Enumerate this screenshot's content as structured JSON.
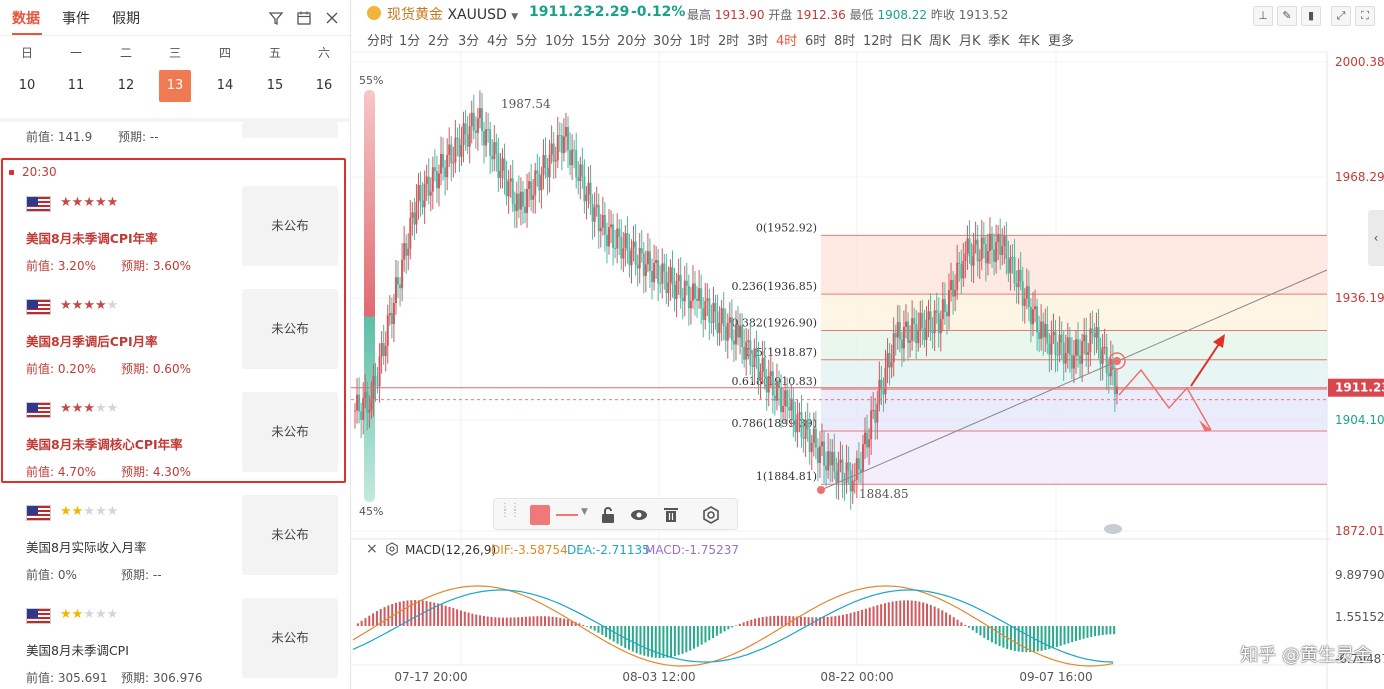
{
  "left_panel": {
    "tabs": [
      {
        "label": "数据",
        "active": true
      },
      {
        "label": "事件",
        "active": false
      },
      {
        "label": "假期",
        "active": false
      }
    ],
    "icons": [
      "filter-icon",
      "calendar-icon",
      "close-icon"
    ],
    "weekdays": [
      "日",
      "一",
      "二",
      "三",
      "四",
      "五",
      "六"
    ],
    "dates": [
      "10",
      "11",
      "12",
      "13",
      "14",
      "15",
      "16"
    ],
    "selected_date": "13",
    "partial_row": {
      "prev": "前值: 141.9",
      "forecast": "预期: --"
    },
    "time_label": "20:30",
    "events": [
      {
        "stars": 5,
        "title": "美国8月未季调CPI年率",
        "prev": "前值: 3.20%",
        "forecast": "预期: 3.60%",
        "status": "未公布",
        "highlight": true
      },
      {
        "stars": 4,
        "title": "美国8月季调后CPI月率",
        "prev": "前值: 0.20%",
        "forecast": "预期: 0.60%",
        "status": "未公布",
        "highlight": true
      },
      {
        "stars": 3,
        "title": "美国8月未季调核心CPI年率",
        "prev": "前值: 4.70%",
        "forecast": "预期: 4.30%",
        "status": "未公布",
        "highlight": true
      },
      {
        "stars": 2,
        "title": "美国8月实际收入月率",
        "prev": "前值: 0%",
        "forecast": "预期: --",
        "status": "未公布",
        "highlight": false
      },
      {
        "stars": 2,
        "title": "美国8月未季调CPI",
        "prev": "前值: 305.691",
        "forecast": "预期: 306.976",
        "status": "未公布",
        "highlight": false
      }
    ]
  },
  "chart": {
    "symbol_cn": "现货黄金",
    "symbol": "XAUUSD",
    "price": "1911.23",
    "change": "-2.29",
    "change_pct": "-0.12%",
    "high_label": "最高",
    "high": "1913.90",
    "open_label": "开盘",
    "open": "1912.36",
    "low_label": "最低",
    "low": "1908.22",
    "prev_close_label": "昨收",
    "prev_close": "1913.52",
    "periods": [
      "分时",
      "1分",
      "2分",
      "3分",
      "4分",
      "5分",
      "10分",
      "15分",
      "20分",
      "30分",
      "1时",
      "2时",
      "3时",
      "4时",
      "6时",
      "8时",
      "12时",
      "日K",
      "周K",
      "月K",
      "季K",
      "年K",
      "更多"
    ],
    "active_period": "4时",
    "price_axis": [
      "2000.38",
      "1968.29",
      "1936.19",
      "1904.10",
      "1872.01"
    ],
    "current_price_tag": "1911.23",
    "fib_levels": [
      {
        "label": "0(1952.92)",
        "price": 1952.92
      },
      {
        "label": "0.236(1936.85)",
        "price": 1936.85
      },
      {
        "label": "0.382(1926.90)",
        "price": 1926.9
      },
      {
        "label": "0.5(1918.87)",
        "price": 1918.87
      },
      {
        "label": "0.618(1910.83)",
        "price": 1910.83
      },
      {
        "label": "0.786(1899.39)",
        "price": 1899.39
      },
      {
        "label": "1(1884.81)",
        "price": 1884.81
      }
    ],
    "high_marker": "1987.54",
    "low_marker": "1884.85",
    "ratio_top": "55%",
    "ratio_bottom": "45%",
    "time_axis": [
      "07-17 20:00",
      "08-03 12:00",
      "08-22 00:00",
      "09-07 16:00"
    ],
    "macd": {
      "name": "MACD(12,26,9)",
      "dif": "DIF:-3.58754",
      "dea": "DEA:-2.71135",
      "macd": "MACD:-1.75237",
      "axis": [
        "9.89790",
        "1.55152",
        "-6.79487"
      ]
    }
  },
  "watermark": "知乎 @黄生灵金",
  "colors": {
    "accent": "#e8553e",
    "up": "#d0595d",
    "down": "#4fb7a3",
    "highlight_border": "#e0302c"
  }
}
